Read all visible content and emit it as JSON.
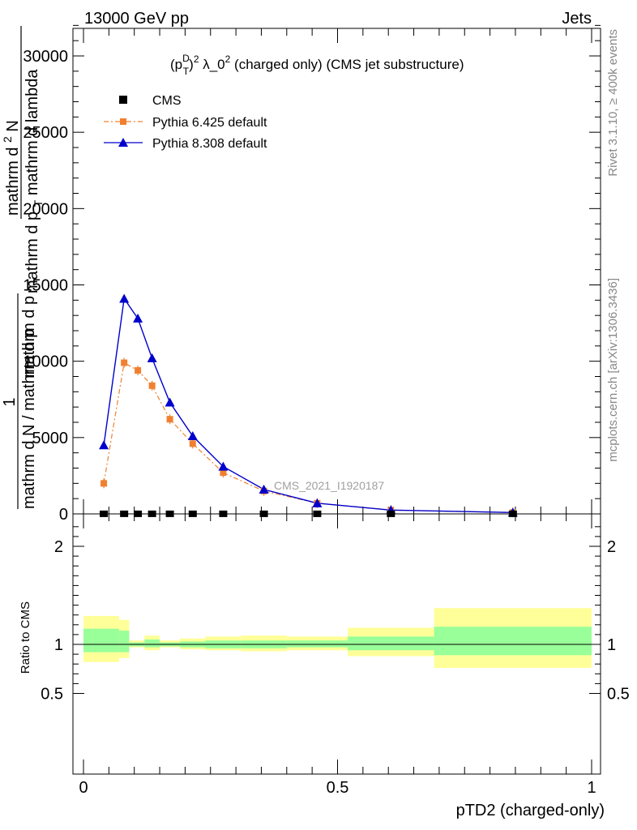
{
  "header": {
    "left": "13000 GeV pp",
    "right": "Jets"
  },
  "side_labels": {
    "rivet": "Rivet 3.1.10, ≥ 400k events",
    "mcplots": "mcplots.cern.ch [arXiv:1306.3436]"
  },
  "colors": {
    "cms": "#000000",
    "pythia6": "#f08030",
    "pythia8": "#0000cc",
    "band_outer": "#ffff99",
    "band_inner": "#99ff99"
  },
  "chart_data": [
    {
      "type": "line",
      "title": "(p_T^D)^2 λ_0^2 (charged only) (CMS jet substructure)",
      "title_parts": {
        "p": "(p",
        "sup_d": "D",
        "sub_t": "T",
        "close": ")",
        "sup2": "2",
        "mid": " λ_0",
        "sup2b": "2",
        "tail": " (charged only) (CMS jet substructure)"
      },
      "ylabel_parts": {
        "one": "1",
        "left": "mathrm d N / mathrm d p",
        "left_sub": "T",
        "left_tail": "mathrm d p",
        "right": "mathrm d",
        "right_sup": "2",
        "right_tail": "N",
        "denom": "mathrm d p",
        "denom_sub": "T",
        "denom_tail": " mathrm d lambda"
      },
      "watermark": "CMS_2021_I1920187",
      "xlim": [
        0,
        1
      ],
      "ylim": [
        0,
        33000
      ],
      "y_ticks": [
        "0",
        "5000",
        "10000",
        "15000",
        "20000",
        "25000",
        "30000"
      ],
      "legend_position": "top-left",
      "series": [
        {
          "name": "CMS",
          "marker": "square",
          "x": [
            0.04,
            0.08,
            0.107,
            0.135,
            0.17,
            0.215,
            0.275,
            0.355,
            0.46,
            0.605,
            0.845
          ],
          "y": [
            5,
            5,
            5,
            5,
            5,
            5,
            5,
            5,
            5,
            5,
            5
          ]
        },
        {
          "name": "Pythia 6.425 default",
          "marker": "square",
          "x": [
            0.04,
            0.08,
            0.107,
            0.135,
            0.17,
            0.215,
            0.275,
            0.355,
            0.46,
            0.605,
            0.845
          ],
          "y": [
            2000,
            9900,
            9400,
            8400,
            6200,
            4600,
            2700,
            1500,
            700,
            250,
            90
          ]
        },
        {
          "name": "Pythia 8.308 default",
          "marker": "triangle",
          "x": [
            0.04,
            0.08,
            0.107,
            0.135,
            0.17,
            0.215,
            0.275,
            0.355,
            0.46,
            0.605,
            0.845
          ],
          "y": [
            4500,
            14100,
            12800,
            10200,
            7300,
            5100,
            3100,
            1600,
            700,
            250,
            90
          ]
        }
      ]
    },
    {
      "type": "area",
      "ylabel": "Ratio to CMS",
      "xlabel": "pTD2 (charged-only)",
      "xlim": [
        0,
        1
      ],
      "ylim": [
        0.35,
        2.3
      ],
      "x_ticks": [
        "0",
        "0.5",
        "1"
      ],
      "y_ticks": [
        "0.5",
        "1",
        "2"
      ],
      "bins": [
        {
          "lo": 0.0,
          "hi": 0.07,
          "outer": [
            0.82,
            1.29
          ],
          "inner": [
            0.92,
            1.16
          ]
        },
        {
          "lo": 0.07,
          "hi": 0.09,
          "outer": [
            0.86,
            1.25
          ],
          "inner": [
            0.92,
            1.14
          ]
        },
        {
          "lo": 0.09,
          "hi": 0.12,
          "outer": [
            0.97,
            1.04
          ],
          "inner": [
            0.98,
            1.02
          ]
        },
        {
          "lo": 0.12,
          "hi": 0.15,
          "outer": [
            0.94,
            1.09
          ],
          "inner": [
            0.97,
            1.05
          ]
        },
        {
          "lo": 0.15,
          "hi": 0.19,
          "outer": [
            0.97,
            1.04
          ],
          "inner": [
            0.98,
            1.02
          ]
        },
        {
          "lo": 0.19,
          "hi": 0.24,
          "outer": [
            0.95,
            1.06
          ],
          "inner": [
            0.97,
            1.03
          ]
        },
        {
          "lo": 0.24,
          "hi": 0.31,
          "outer": [
            0.94,
            1.08
          ],
          "inner": [
            0.96,
            1.04
          ]
        },
        {
          "lo": 0.31,
          "hi": 0.4,
          "outer": [
            0.93,
            1.09
          ],
          "inner": [
            0.96,
            1.04
          ]
        },
        {
          "lo": 0.4,
          "hi": 0.52,
          "outer": [
            0.94,
            1.08
          ],
          "inner": [
            0.97,
            1.04
          ]
        },
        {
          "lo": 0.52,
          "hi": 0.69,
          "outer": [
            0.88,
            1.17
          ],
          "inner": [
            0.94,
            1.08
          ]
        },
        {
          "lo": 0.69,
          "hi": 1.0,
          "outer": [
            0.76,
            1.37
          ],
          "inner": [
            0.89,
            1.18
          ]
        }
      ]
    }
  ]
}
